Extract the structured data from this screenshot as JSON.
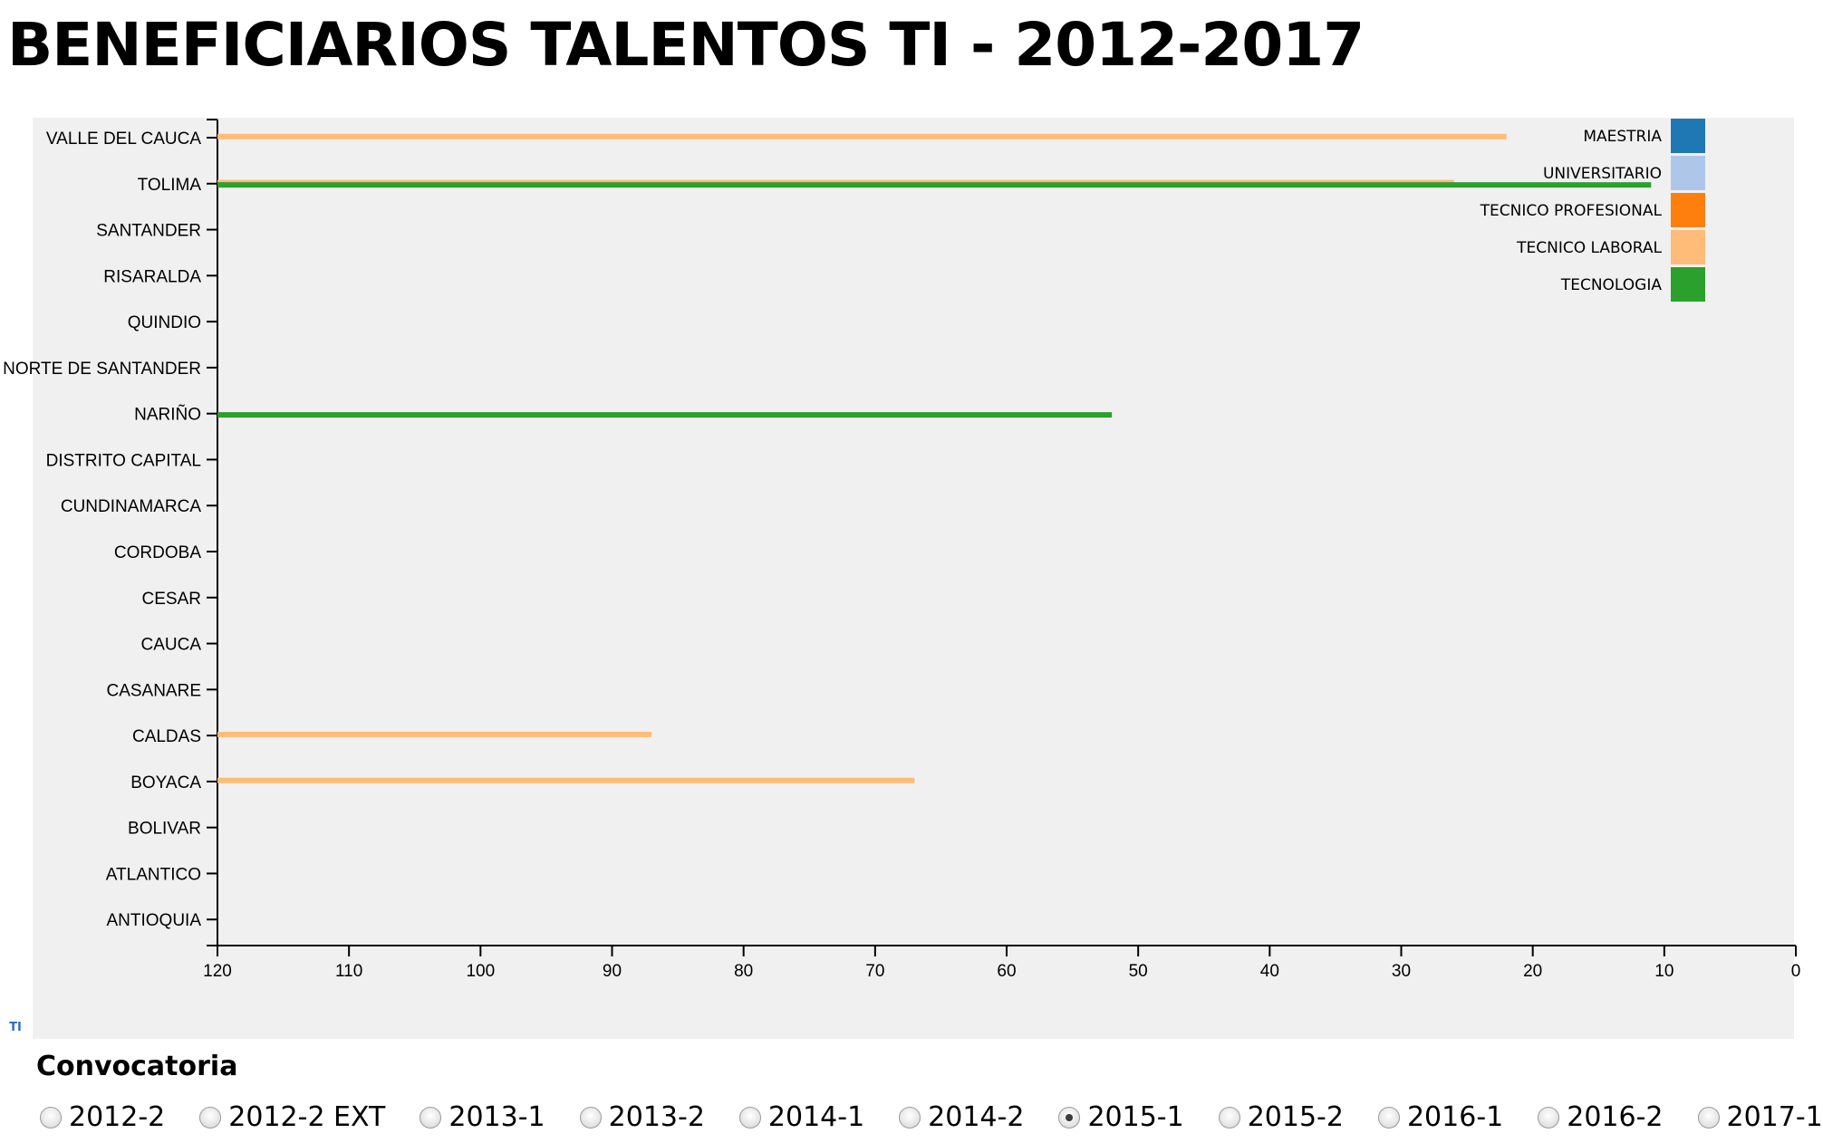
{
  "page": {
    "title": "BENEFICIARIOS TALENTOS TI - 2012-2017"
  },
  "chart_data": {
    "type": "bar",
    "orientation": "horizontal",
    "title": "",
    "xlabel": "",
    "ylabel": "",
    "x_axis_reversed": true,
    "xlim": [
      0,
      120
    ],
    "x_ticks": [
      120,
      110,
      100,
      90,
      80,
      70,
      60,
      50,
      40,
      30,
      20,
      10,
      0
    ],
    "grid": false,
    "legend_position": "top-right",
    "categories": [
      "VALLE DEL CAUCA",
      "TOLIMA",
      "SANTANDER",
      "RISARALDA",
      "QUINDIO",
      "NORTE DE SANTANDER",
      "NARIÑO",
      "DISTRITO CAPITAL",
      "CUNDINAMARCA",
      "CORDOBA",
      "CESAR",
      "CAUCA",
      "CASANARE",
      "CALDAS",
      "BOYACA",
      "BOLIVAR",
      "ATLANTICO",
      "ANTIOQUIA"
    ],
    "series": [
      {
        "name": "MAESTRIA",
        "color": "#1f77b4",
        "values": [
          0,
          0,
          0,
          0,
          0,
          0,
          0,
          0,
          0,
          0,
          0,
          0,
          0,
          0,
          0,
          0,
          0,
          0
        ]
      },
      {
        "name": "UNIVERSITARIO",
        "color": "#aec7e8",
        "values": [
          0,
          0,
          0,
          0,
          0,
          0,
          0,
          0,
          0,
          0,
          0,
          0,
          0,
          0,
          0,
          0,
          0,
          0
        ]
      },
      {
        "name": "TECNICO PROFESIONAL",
        "color": "#ff7f0e",
        "values": [
          0,
          0,
          0,
          0,
          0,
          0,
          0,
          0,
          0,
          0,
          0,
          0,
          0,
          0,
          0,
          0,
          0,
          0
        ]
      },
      {
        "name": "TECNICO LABORAL",
        "color": "#ffbb78",
        "values": [
          22,
          26,
          0,
          0,
          0,
          0,
          0,
          0,
          0,
          0,
          0,
          0,
          0,
          87,
          67,
          0,
          0,
          0
        ]
      },
      {
        "name": "TECNOLOGIA",
        "color": "#2ca02c",
        "values": [
          0,
          11,
          0,
          0,
          0,
          0,
          52,
          0,
          0,
          0,
          0,
          0,
          0,
          0,
          0,
          0,
          0,
          0
        ]
      }
    ]
  },
  "logo": {
    "text": "TI"
  },
  "filter": {
    "title": "Convocatoria",
    "options": [
      "2012-2",
      "2012-2 EXT",
      "2013-1",
      "2013-2",
      "2014-1",
      "2014-2",
      "2015-1",
      "2015-2",
      "2016-1",
      "2016-2",
      "2017-1"
    ],
    "selected": "2015-1"
  }
}
